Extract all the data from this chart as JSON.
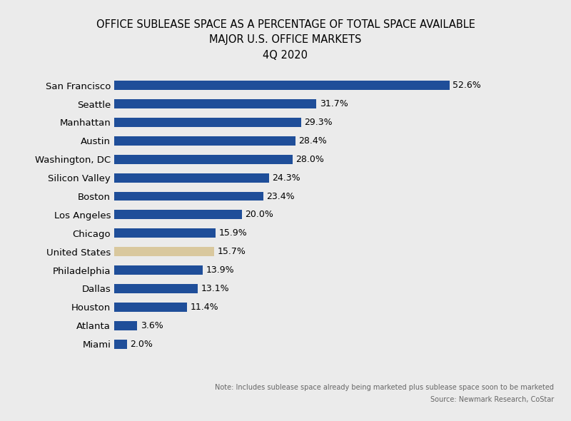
{
  "title_line1": "OFFICE SUBLEASE SPACE AS A PERCENTAGE OF TOTAL SPACE AVAILABLE",
  "title_line2": "MAJOR U.S. OFFICE MARKETS",
  "title_line3": "4Q 2020",
  "categories": [
    "San Francisco",
    "Seattle",
    "Manhattan",
    "Austin",
    "Washington, DC",
    "Silicon Valley",
    "Boston",
    "Los Angeles",
    "Chicago",
    "United States",
    "Philadelphia",
    "Dallas",
    "Houston",
    "Atlanta",
    "Miami"
  ],
  "values": [
    52.6,
    31.7,
    29.3,
    28.4,
    28.0,
    24.3,
    23.4,
    20.0,
    15.9,
    15.7,
    13.9,
    13.1,
    11.4,
    3.6,
    2.0
  ],
  "bar_colors": [
    "#1F4E99",
    "#1F4E99",
    "#1F4E99",
    "#1F4E99",
    "#1F4E99",
    "#1F4E99",
    "#1F4E99",
    "#1F4E99",
    "#1F4E99",
    "#D9C89E",
    "#1F4E99",
    "#1F4E99",
    "#1F4E99",
    "#1F4E99",
    "#1F4E99"
  ],
  "labels": [
    "52.6%",
    "31.7%",
    "29.3%",
    "28.4%",
    "28.0%",
    "24.3%",
    "23.4%",
    "20.0%",
    "15.9%",
    "15.7%",
    "13.9%",
    "13.1%",
    "11.4%",
    "3.6%",
    "2.0%"
  ],
  "xlim": [
    0,
    60
  ],
  "background_color": "#EBEBEB",
  "bar_height": 0.5,
  "footnote1": "Note: Includes sublease space already being marketed plus sublease space soon to be marketed",
  "footnote2": "Source: Newmark Research, CoStar",
  "title_fontsize": 10.5,
  "label_fontsize": 9,
  "tick_fontsize": 9.5
}
